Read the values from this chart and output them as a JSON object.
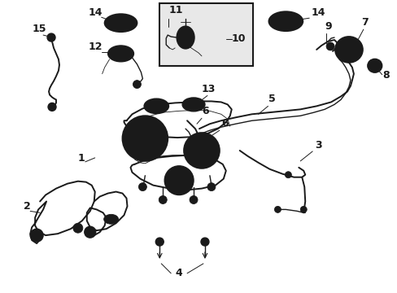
{
  "bg_color": "#ffffff",
  "line_color": "#1a1a1a",
  "figsize": [
    4.89,
    3.6
  ],
  "dpi": 100,
  "font_size": 9,
  "lw_main": 1.0,
  "lw_thin": 0.6,
  "lw_thick": 1.4
}
